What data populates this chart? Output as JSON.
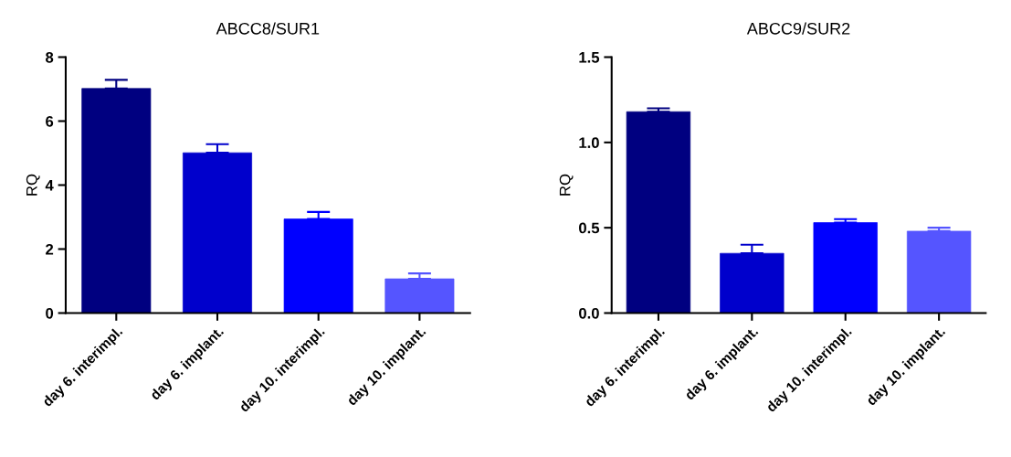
{
  "chart_data": [
    {
      "type": "bar",
      "title": "ABCC8/SUR1",
      "ylabel": "RQ",
      "categories": [
        "day 6. interimpl.",
        "day 6. implant.",
        "day 10. interimpl.",
        "day 10. implant."
      ],
      "values": [
        7.02,
        5.01,
        2.94,
        1.07
      ],
      "errors": [
        0.27,
        0.27,
        0.22,
        0.17
      ],
      "colors": [
        "#000080",
        "#0000cc",
        "#0000ff",
        "#5555ff"
      ],
      "ylim": [
        0,
        8
      ],
      "yticks": [
        0,
        2,
        4,
        6,
        8
      ],
      "grid": false,
      "legend": false
    },
    {
      "type": "bar",
      "title": "ABCC9/SUR2",
      "ylabel": "RQ",
      "categories": [
        "day 6. interimpl.",
        "day 6. implant.",
        "day 10. interimpl.",
        "day 10. implant."
      ],
      "values": [
        1.18,
        0.35,
        0.53,
        0.48
      ],
      "errors": [
        0.02,
        0.05,
        0.02,
        0.02
      ],
      "colors": [
        "#000080",
        "#0000cc",
        "#0000ff",
        "#5555ff"
      ],
      "ylim": [
        0,
        1.5
      ],
      "yticks": [
        {
          "value": 0,
          "label": "0.0"
        },
        {
          "value": 0.5,
          "label": "0.5"
        },
        {
          "value": 1,
          "label": "1.0"
        },
        {
          "value": 1.5,
          "label": "1.5"
        }
      ],
      "grid": false,
      "legend": false
    }
  ]
}
